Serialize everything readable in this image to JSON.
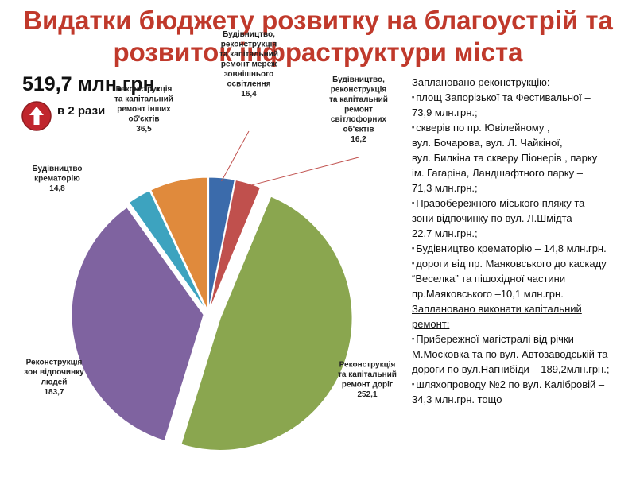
{
  "title": {
    "line1": "Видатки бюджету розвитку на благоустрій та",
    "line2": "розвиток інфраструктури міста"
  },
  "total": "519,7 млн.грн.",
  "increase": {
    "label": "в 2 рази",
    "icon": "arrow-up-icon",
    "color": "#c0262d"
  },
  "colors": {
    "title": "#c0392b",
    "slices": [
      "#3b6bab",
      "#c0504d",
      "#8aa64f",
      "#7f63a0",
      "#3da3bf",
      "#e08a3c"
    ]
  },
  "chart_data": {
    "type": "pie",
    "unit": "млн.грн.",
    "slices": [
      {
        "label_lines": [
          "Будівництво,",
          "реконструкція",
          "та капітальний",
          "ремонт мереж",
          "зовнішнього",
          "освітлення"
        ],
        "value_text": "16,4",
        "value": 16.4,
        "exploded": false
      },
      {
        "label_lines": [
          "Будівництво,",
          "реконструкція",
          "та капітальний",
          "ремонт",
          "світлофорних",
          "об'єктів"
        ],
        "value_text": "16,2",
        "value": 16.2,
        "exploded": false
      },
      {
        "label_lines": [
          "Реконструкція",
          "та капітальний",
          "ремонт доріг"
        ],
        "value_text": "252,1",
        "value": 252.1,
        "exploded": true
      },
      {
        "label_lines": [
          "Реконструкція",
          "зон відпочинку",
          "людей"
        ],
        "value_text": "183,7",
        "value": 183.7,
        "exploded": false
      },
      {
        "label_lines": [
          "Будівництво",
          "крематорію"
        ],
        "value_text": "14,8",
        "value": 14.8,
        "exploded": false
      },
      {
        "label_lines": [
          "Реконструкція",
          "та капітальний",
          "ремонт інших",
          "об'єктів"
        ],
        "value_text": "36,5",
        "value": 36.5,
        "exploded": false
      }
    ]
  },
  "panel": {
    "heading1": "Заплановано реконструкцію:",
    "items1": [
      [
        "площ Запорізької  та Фестивальної –",
        "73,9 млн.грн.;"
      ],
      [
        "скверів по пр. Ювілейному ,",
        "вул. Бочарова,  вул. Л. Чайкіної,",
        "вул. Билкіна та скверу Піонерів , парку",
        "ім. Гагаріна, Ландшафтного парку –",
        "71,3 млн.грн.;"
      ],
      [
        "Правобережного міського пляжу та",
        "зони відпочинку по вул. Л.Шмідта –",
        "22,7 млн.грн.;"
      ],
      [
        "Будівництво крематорію – 14,8 млн.грн."
      ],
      [
        "дороги від пр. Маяковського до каскаду",
        "“Веселка”  та пішохідної частини",
        "пр.Маяковського –10,1 млн.грн."
      ]
    ],
    "heading2_lines": [
      "Заплановано виконати капітальний",
      "ремонт:"
    ],
    "items2": [
      [
        "Прибережної магістралі від річки",
        "М.Московка та по вул. Автозаводській та",
        "дороги по вул.Нагнибіди – 189,2млн.грн.;"
      ],
      [
        "шляхопроводу №2 по вул. Калібровій –",
        "34,3 млн.грн. тощо"
      ]
    ]
  }
}
